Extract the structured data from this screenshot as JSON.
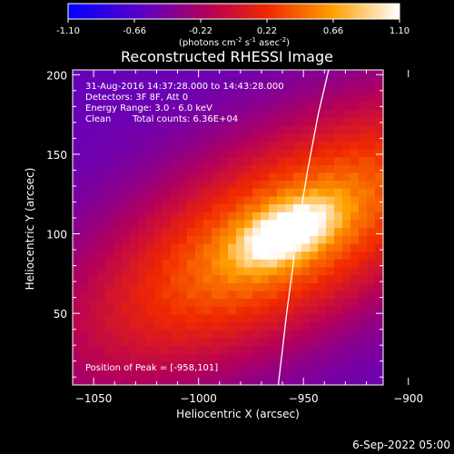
{
  "chart_data": {
    "type": "heatmap",
    "title": "Reconstructed RHESSI Image",
    "xlabel": "Heliocentric X (arcsec)",
    "ylabel": "Heliocentric Y (arcsec)",
    "xlim": [
      -1060,
      -912
    ],
    "ylim": [
      5,
      203
    ],
    "xticks": [
      -1050,
      -1000,
      -950,
      -900
    ],
    "yticks": [
      50,
      100,
      150,
      200
    ],
    "peak": {
      "x": -958,
      "y": 101
    },
    "colorbar": {
      "ticks": [
        "-1.10",
        "-0.66",
        "-0.22",
        "0.22",
        "0.66",
        "1.10"
      ],
      "range": [
        -1.1,
        1.1
      ],
      "unit_prefix": "(photons cm",
      "unit_exp1": "-2",
      "unit_mid": " s",
      "unit_exp2": "-1",
      "unit_mid2": " asec",
      "unit_exp3": "-2",
      "unit_suffix": ")"
    },
    "info": {
      "line1": "31-Aug-2016 14:37:28.000 to 14:43:28.000",
      "line2": "Detectors: 3F 8F, Att 0",
      "line3": "Energy Range: 3.0 - 6.0 keV",
      "line4_a": "Clean",
      "line4_b": "Total counts: 6.36E+04"
    },
    "peak_label": "Position of Peak = [-958,101]",
    "limb_curve": [
      [
        -962,
        5
      ],
      [
        -958,
        50
      ],
      [
        -953,
        100
      ],
      [
        -948,
        140
      ],
      [
        -943,
        175
      ],
      [
        -938,
        203
      ]
    ]
  },
  "footer_date": "6-Sep-2022 05:00",
  "colors": {
    "background": "#000000",
    "foreground": "#ffffff"
  }
}
